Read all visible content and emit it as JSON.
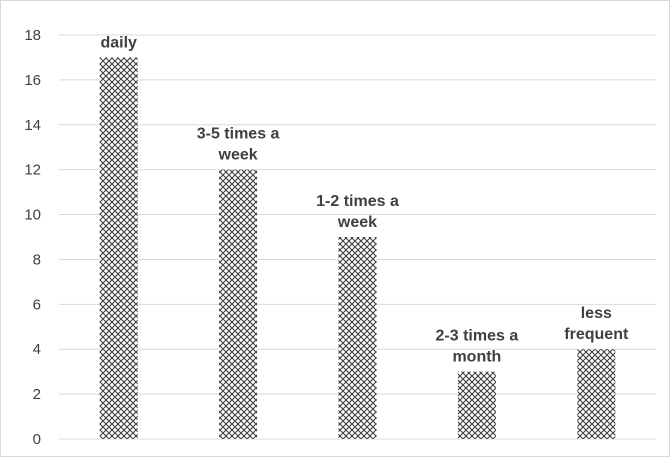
{
  "chart_data": {
    "type": "bar",
    "title": "",
    "xlabel": "",
    "ylabel": "",
    "categories": [
      "daily",
      "3-5 times a week",
      "1-2 times a week",
      "2-3 times a month",
      "less frequent"
    ],
    "data_labels": [
      [
        "daily"
      ],
      [
        "3-5 times a",
        "week"
      ],
      [
        "1-2 times a",
        "week"
      ],
      [
        "2-3 times a",
        "month"
      ],
      [
        "less",
        "frequent"
      ]
    ],
    "values": [
      17,
      12,
      9,
      3,
      4
    ],
    "ylim": [
      0,
      18
    ],
    "yticks": [
      0,
      2,
      4,
      6,
      8,
      10,
      12,
      14,
      16,
      18
    ],
    "grid": true,
    "legend": "none",
    "colors": {
      "bar_fg": "#404040",
      "bar_bg": "#ffffff",
      "grid": "#d9d9d9",
      "text": "#404040"
    }
  }
}
